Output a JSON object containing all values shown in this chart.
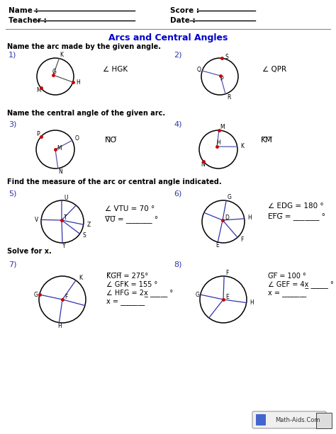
{
  "title": "Arcs and Central Angles",
  "title_color": "#0000CC",
  "bg_color": "#FFFFFF",
  "section1_title": "Name the arc made by the given angle.",
  "section2_title": "Name the central angle of the given arc.",
  "section3_title": "Find the measure of the arc or central angle indicated.",
  "section4_title": "Solve for x.",
  "watermark": "Math-Aids.Com"
}
